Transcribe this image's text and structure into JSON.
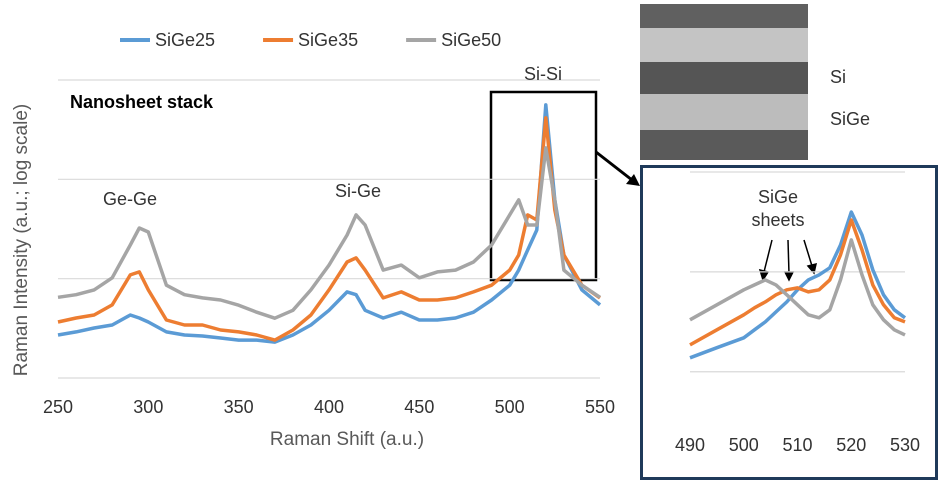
{
  "chart_data": [
    {
      "type": "line",
      "title": "Nanosheet stack",
      "xlabel": "Raman Shift (a.u.)",
      "ylabel": "Raman Intensity (a.u.; log scale)",
      "annotations": [
        "Ge-Ge",
        "Si-Ge",
        "Si-Si"
      ],
      "log_y": true,
      "grid": true,
      "legend": "top",
      "xlim": [
        250,
        550
      ],
      "xticks": [
        250,
        300,
        350,
        400,
        450,
        500,
        550
      ],
      "ylim": [
        1,
        1000
      ],
      "x": [
        250,
        260,
        270,
        280,
        290,
        295,
        300,
        310,
        320,
        330,
        340,
        350,
        360,
        370,
        380,
        390,
        400,
        410,
        415,
        420,
        430,
        440,
        450,
        460,
        470,
        480,
        490,
        500,
        505,
        510,
        515,
        520,
        525,
        530,
        540,
        550
      ],
      "series": [
        {
          "name": "SiGe25",
          "color": "#5b9bd5",
          "values": [
            2.71,
            2.91,
            3.19,
            3.42,
            4.31,
            4.02,
            3.66,
            2.91,
            2.71,
            2.65,
            2.53,
            2.41,
            2.41,
            2.3,
            2.71,
            3.42,
            4.8,
            7.35,
            6.9,
            4.8,
            4.02,
            4.6,
            3.84,
            3.84,
            4.02,
            4.6,
            6.1,
            8.6,
            12.2,
            19.5,
            30.9,
            561,
            62.1,
            17.3,
            7.7,
            5.44
          ]
        },
        {
          "name": "SiGe35",
          "color": "#ed7d31",
          "values": [
            3.66,
            4.02,
            4.31,
            5.44,
            10.9,
            11.7,
            7.7,
            3.84,
            3.42,
            3.42,
            3.04,
            2.91,
            2.71,
            2.41,
            3.04,
            4.31,
            7.7,
            14.7,
            16.2,
            12.2,
            6.4,
            7.35,
            6.1,
            6.1,
            6.4,
            7.35,
            8.6,
            12.2,
            17.3,
            43.8,
            39,
            415,
            49.2,
            17.3,
            8.6,
            6.4
          ]
        },
        {
          "name": "SiGe50",
          "color": "#a5a5a5",
          "values": [
            6.5,
            6.9,
            7.7,
            10.2,
            21.8,
            32.4,
            29.5,
            8.6,
            6.9,
            6.4,
            6.1,
            5.4,
            4.6,
            4,
            4.8,
            7.7,
            13.7,
            27.5,
            43.8,
            34.7,
            12.2,
            13.7,
            10.2,
            11.7,
            12.2,
            14.7,
            21.8,
            43.8,
            62.1,
            34.7,
            34.7,
            207,
            62.1,
            12.2,
            8.6,
            6.5
          ]
        }
      ]
    },
    {
      "type": "line",
      "annotations": [
        "SiGe",
        "sheets"
      ],
      "log_y": true,
      "grid": true,
      "xlim": [
        490,
        530
      ],
      "xticks": [
        490,
        500,
        510,
        520,
        530
      ],
      "ylim": [
        3,
        1000
      ],
      "x": [
        490,
        495,
        500,
        502,
        504,
        506,
        508,
        510,
        512,
        514,
        516,
        518,
        520,
        522,
        524,
        526,
        528,
        530
      ],
      "series": [
        {
          "color": "#5b9bd5",
          "values": [
            13.8,
            17.4,
            21.9,
            26.3,
            31.6,
            39.8,
            50.1,
            66.1,
            83.2,
            93.3,
            110,
            186,
            398,
            234,
            105,
            58.9,
            41.7,
            34.7
          ]
        },
        {
          "color": "#ed7d31",
          "values": [
            18.6,
            26.3,
            37.2,
            43.7,
            50.1,
            58.9,
            66.1,
            69.2,
            63.1,
            66.1,
            83.2,
            148,
            331,
            166,
            74.1,
            46.8,
            34.7,
            31.6
          ]
        },
        {
          "color": "#a5a5a5",
          "values": [
            33.1,
            46.8,
            66.1,
            74.1,
            83.2,
            74.1,
            58.9,
            46.8,
            37.2,
            34.7,
            41.7,
            83.2,
            209,
            93.3,
            46.8,
            33.1,
            26.3,
            23.4
          ]
        }
      ]
    }
  ],
  "image_labels": [
    "Si",
    "SiGe"
  ]
}
